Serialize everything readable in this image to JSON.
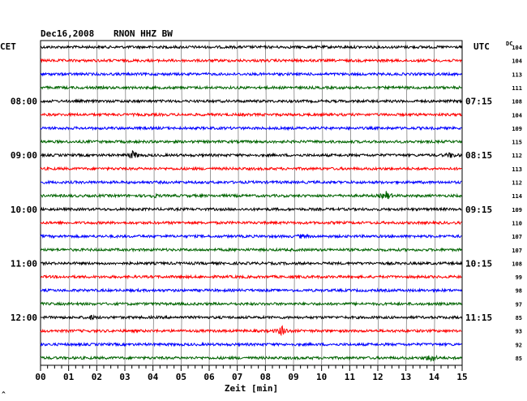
{
  "header": {
    "date": "Dec16,2008",
    "station": "RNON HHZ BW"
  },
  "left_tz": "CET",
  "right_tz": "UTC",
  "dc_label": "DC",
  "corner_mark": "^",
  "chart_data": {
    "type": "line",
    "title": "Dec16,2008  RNON HHZ BW",
    "xlabel": "Zeit [min]",
    "xlim": [
      0,
      15
    ],
    "x_ticks": [
      "00",
      "01",
      "02",
      "03",
      "04",
      "05",
      "06",
      "07",
      "08",
      "09",
      "10",
      "11",
      "12",
      "13",
      "14",
      "15"
    ],
    "trace_interval_min": 15,
    "trace_count": 24,
    "left_time_labels": [
      {
        "trace": 4,
        "text": "08:00"
      },
      {
        "trace": 8,
        "text": "09:00"
      },
      {
        "trace": 12,
        "text": "10:00"
      },
      {
        "trace": 16,
        "text": "11:00"
      },
      {
        "trace": 20,
        "text": "12:00"
      }
    ],
    "right_time_labels": [
      {
        "trace": 4,
        "text": "07:15"
      },
      {
        "trace": 8,
        "text": "08:15"
      },
      {
        "trace": 12,
        "text": "09:15"
      },
      {
        "trace": 16,
        "text": "10:15"
      },
      {
        "trace": 20,
        "text": "11:15"
      }
    ],
    "trace_colors": [
      "#000000",
      "#ff0000",
      "#0000ff",
      "#006400"
    ],
    "dc_values": [
      "104",
      "104",
      "113",
      "111",
      "108",
      "104",
      "109",
      "115",
      "112",
      "113",
      "112",
      "114",
      "109",
      "110",
      "107",
      "107",
      "108",
      "99",
      "98",
      "97",
      "85",
      "93",
      "92",
      "85"
    ],
    "events": [
      {
        "trace": 8,
        "minute": 3.3,
        "amplitude": 5
      },
      {
        "trace": 8,
        "minute": 14.6,
        "amplitude": 3
      },
      {
        "trace": 11,
        "minute": 12.3,
        "amplitude": 5
      },
      {
        "trace": 11,
        "minute": 4.0,
        "amplitude": 2
      },
      {
        "trace": 20,
        "minute": 1.8,
        "amplitude": 2
      },
      {
        "trace": 21,
        "minute": 8.6,
        "amplitude": 6
      },
      {
        "trace": 23,
        "minute": 13.9,
        "amplitude": 5
      },
      {
        "trace": 14,
        "minute": 9.3,
        "amplitude": 2
      }
    ]
  }
}
